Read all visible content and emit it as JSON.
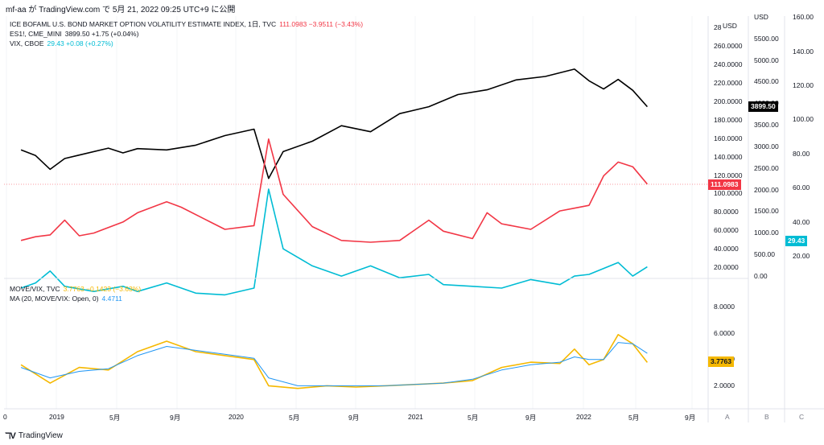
{
  "header": {
    "published": "mf-aa が TradingView.com で 5月 21, 2022 09:25 UTC+9 に公開"
  },
  "footer": {
    "brand": "TradingView",
    "logo_icon": "tradingview-logo-icon"
  },
  "legend_top": [
    {
      "label": "ICE BOFAML U.S. BOND MARKET OPTION VOLATILITY ESTIMATE INDEX, 1日, TVC",
      "value": "111.0983 −3.9511 (−3.43%)",
      "color": "#f23645"
    },
    {
      "label": "ES1!, CME_MINI",
      "value": "3899.50 +1.75 (+0.04%)",
      "color": "#131722"
    },
    {
      "label": "VIX, CBOE",
      "value": "29.43 +0.08 (+0.27%)",
      "color": "#00bcd4"
    }
  ],
  "legend_bottom": [
    {
      "label": "MOVE/VIX, TVC",
      "value": "3.7763 −0.1423 (−3.63%)",
      "color": "#f5b800"
    },
    {
      "label": "MA (20, MOVE/VIX: Open, 0)",
      "value": "4.4711",
      "color": "#2196f3"
    }
  ],
  "axes": {
    "move_ticks": [
      "20.0000",
      "40.0000",
      "60.0000",
      "80.0000",
      "100.0000",
      "120.0000",
      "140.0000",
      "160.0000",
      "180.0000",
      "200.0000",
      "220.0000",
      "240.0000",
      "260.0000",
      "28"
    ],
    "es_ticks": [
      "0.00",
      "500.00",
      "1000.00",
      "1500.00",
      "2000.00",
      "2500.00",
      "3000.00",
      "3500.00",
      "4000.00",
      "4500.00",
      "5000.00",
      "5500.00",
      "USD"
    ],
    "vix_ticks": [
      "20.00",
      "40.00",
      "60.00",
      "80.00",
      "100.00",
      "120.00",
      "140.00",
      "160.00"
    ],
    "ratio_ticks": [
      "2.0000",
      "4.0000",
      "6.0000",
      "8.0000"
    ],
    "usd_label_move": "USD",
    "x_ticks": [
      "0",
      "2019",
      "5月",
      "9月",
      "2020",
      "5月",
      "9月",
      "2021",
      "5月",
      "9月",
      "2022",
      "5月",
      "9月"
    ],
    "scale_buttons": [
      "A",
      "B",
      "C"
    ]
  },
  "price_tags": {
    "es": {
      "text": "3899.50",
      "color": "#000000"
    },
    "move": {
      "text": "111.0983",
      "color": "#f23645"
    },
    "vix": {
      "text": "29.43",
      "color": "#00bcd4"
    },
    "ratio": {
      "text": "3.7763",
      "color": "#f5b800"
    }
  },
  "chart_data": [
    {
      "type": "line",
      "title": "",
      "x_range": [
        "2018-09",
        "2022-05"
      ],
      "grid": true,
      "series": [
        {
          "name": "ES1!, CME_MINI",
          "color": "#000000",
          "points": [
            [
              "2018-10",
              2900
            ],
            [
              "2018-11",
              2770
            ],
            [
              "2018-12",
              2450
            ],
            [
              "2019-01",
              2700
            ],
            [
              "2019-02",
              2780
            ],
            [
              "2019-04",
              2940
            ],
            [
              "2019-05",
              2830
            ],
            [
              "2019-06",
              2930
            ],
            [
              "2019-08",
              2900
            ],
            [
              "2019-10",
              3010
            ],
            [
              "2019-12",
              3230
            ],
            [
              "2020-02",
              3380
            ],
            [
              "2020-03",
              2240
            ],
            [
              "2020-04",
              2860
            ],
            [
              "2020-06",
              3100
            ],
            [
              "2020-08",
              3460
            ],
            [
              "2020-10",
              3320
            ],
            [
              "2020-12",
              3740
            ],
            [
              "2021-02",
              3900
            ],
            [
              "2021-04",
              4180
            ],
            [
              "2021-06",
              4290
            ],
            [
              "2021-08",
              4520
            ],
            [
              "2021-10",
              4600
            ],
            [
              "2021-12",
              4770
            ],
            [
              "2022-01",
              4500
            ],
            [
              "2022-02",
              4310
            ],
            [
              "2022-03",
              4530
            ],
            [
              "2022-04",
              4280
            ],
            [
              "2022-05",
              3899.5
            ]
          ]
        },
        {
          "name": "ICE BOFAML U.S. BOND MARKET OPTION VOLATILITY ESTIMATE INDEX, 1日, TVC",
          "color": "#f23645",
          "points": [
            [
              "2018-10",
              50
            ],
            [
              "2018-11",
              54
            ],
            [
              "2018-12",
              56
            ],
            [
              "2019-01",
              72
            ],
            [
              "2019-02",
              55
            ],
            [
              "2019-03",
              58
            ],
            [
              "2019-05",
              70
            ],
            [
              "2019-06",
              80
            ],
            [
              "2019-08",
              92
            ],
            [
              "2019-09",
              86
            ],
            [
              "2019-11",
              70
            ],
            [
              "2019-12",
              62
            ],
            [
              "2020-02",
              66
            ],
            [
              "2020-03",
              160
            ],
            [
              "2020-04",
              100
            ],
            [
              "2020-06",
              65
            ],
            [
              "2020-08",
              50
            ],
            [
              "2020-10",
              48
            ],
            [
              "2020-12",
              50
            ],
            [
              "2021-02",
              72
            ],
            [
              "2021-03",
              60
            ],
            [
              "2021-05",
              52
            ],
            [
              "2021-06",
              80
            ],
            [
              "2021-07",
              68
            ],
            [
              "2021-09",
              62
            ],
            [
              "2021-11",
              82
            ],
            [
              "2021-12",
              85
            ],
            [
              "2022-01",
              88
            ],
            [
              "2022-02",
              120
            ],
            [
              "2022-03",
              135
            ],
            [
              "2022-04",
              130
            ],
            [
              "2022-05",
              111.0983
            ]
          ]
        },
        {
          "name": "VIX, CBOE",
          "color": "#00bcd4",
          "points": [
            [
              "2018-10",
              17
            ],
            [
              "2018-11",
              20
            ],
            [
              "2018-12",
              27
            ],
            [
              "2019-01",
              18
            ],
            [
              "2019-03",
              15
            ],
            [
              "2019-05",
              18
            ],
            [
              "2019-06",
              15
            ],
            [
              "2019-08",
              20
            ],
            [
              "2019-10",
              14
            ],
            [
              "2019-12",
              13
            ],
            [
              "2020-02",
              17
            ],
            [
              "2020-03",
              75
            ],
            [
              "2020-04",
              40
            ],
            [
              "2020-06",
              30
            ],
            [
              "2020-08",
              24
            ],
            [
              "2020-10",
              30
            ],
            [
              "2020-12",
              23
            ],
            [
              "2021-02",
              25
            ],
            [
              "2021-03",
              19
            ],
            [
              "2021-05",
              18
            ],
            [
              "2021-07",
              17
            ],
            [
              "2021-09",
              22
            ],
            [
              "2021-11",
              19
            ],
            [
              "2021-12",
              24
            ],
            [
              "2022-01",
              25
            ],
            [
              "2022-03",
              32
            ],
            [
              "2022-04",
              24
            ],
            [
              "2022-05",
              29.43
            ]
          ]
        }
      ]
    },
    {
      "type": "line",
      "title": "",
      "x_range": [
        "2018-09",
        "2022-05"
      ],
      "ylim": [
        0,
        9
      ],
      "series": [
        {
          "name": "MOVE/VIX, TVC",
          "color": "#f5b800",
          "points": [
            [
              "2018-10",
              3.6
            ],
            [
              "2018-12",
              2.2
            ],
            [
              "2019-02",
              3.4
            ],
            [
              "2019-04",
              3.2
            ],
            [
              "2019-06",
              4.6
            ],
            [
              "2019-08",
              5.4
            ],
            [
              "2019-10",
              4.6
            ],
            [
              "2019-12",
              4.3
            ],
            [
              "2020-02",
              4.0
            ],
            [
              "2020-03",
              2.0
            ],
            [
              "2020-05",
              1.8
            ],
            [
              "2020-07",
              2.0
            ],
            [
              "2020-09",
              1.9
            ],
            [
              "2020-11",
              2.0
            ],
            [
              "2021-01",
              2.1
            ],
            [
              "2021-03",
              2.2
            ],
            [
              "2021-05",
              2.4
            ],
            [
              "2021-07",
              3.4
            ],
            [
              "2021-09",
              3.8
            ],
            [
              "2021-11",
              3.7
            ],
            [
              "2021-12",
              4.8
            ],
            [
              "2022-01",
              3.6
            ],
            [
              "2022-02",
              4.0
            ],
            [
              "2022-03",
              5.9
            ],
            [
              "2022-04",
              5.2
            ],
            [
              "2022-05",
              3.7763
            ]
          ]
        },
        {
          "name": "MA (20, MOVE/VIX: Open, 0)",
          "color": "#2196f3",
          "points": [
            [
              "2018-10",
              3.4
            ],
            [
              "2018-12",
              2.6
            ],
            [
              "2019-02",
              3.1
            ],
            [
              "2019-04",
              3.3
            ],
            [
              "2019-06",
              4.3
            ],
            [
              "2019-08",
              5.0
            ],
            [
              "2019-10",
              4.7
            ],
            [
              "2019-12",
              4.4
            ],
            [
              "2020-02",
              4.1
            ],
            [
              "2020-03",
              2.6
            ],
            [
              "2020-05",
              2.0
            ],
            [
              "2020-07",
              2.0
            ],
            [
              "2020-09",
              2.0
            ],
            [
              "2020-11",
              2.0
            ],
            [
              "2021-01",
              2.1
            ],
            [
              "2021-03",
              2.2
            ],
            [
              "2021-05",
              2.5
            ],
            [
              "2021-07",
              3.2
            ],
            [
              "2021-09",
              3.6
            ],
            [
              "2021-11",
              3.8
            ],
            [
              "2021-12",
              4.2
            ],
            [
              "2022-01",
              4.0
            ],
            [
              "2022-02",
              4.0
            ],
            [
              "2022-03",
              5.3
            ],
            [
              "2022-04",
              5.2
            ],
            [
              "2022-05",
              4.4711
            ]
          ]
        }
      ]
    }
  ]
}
